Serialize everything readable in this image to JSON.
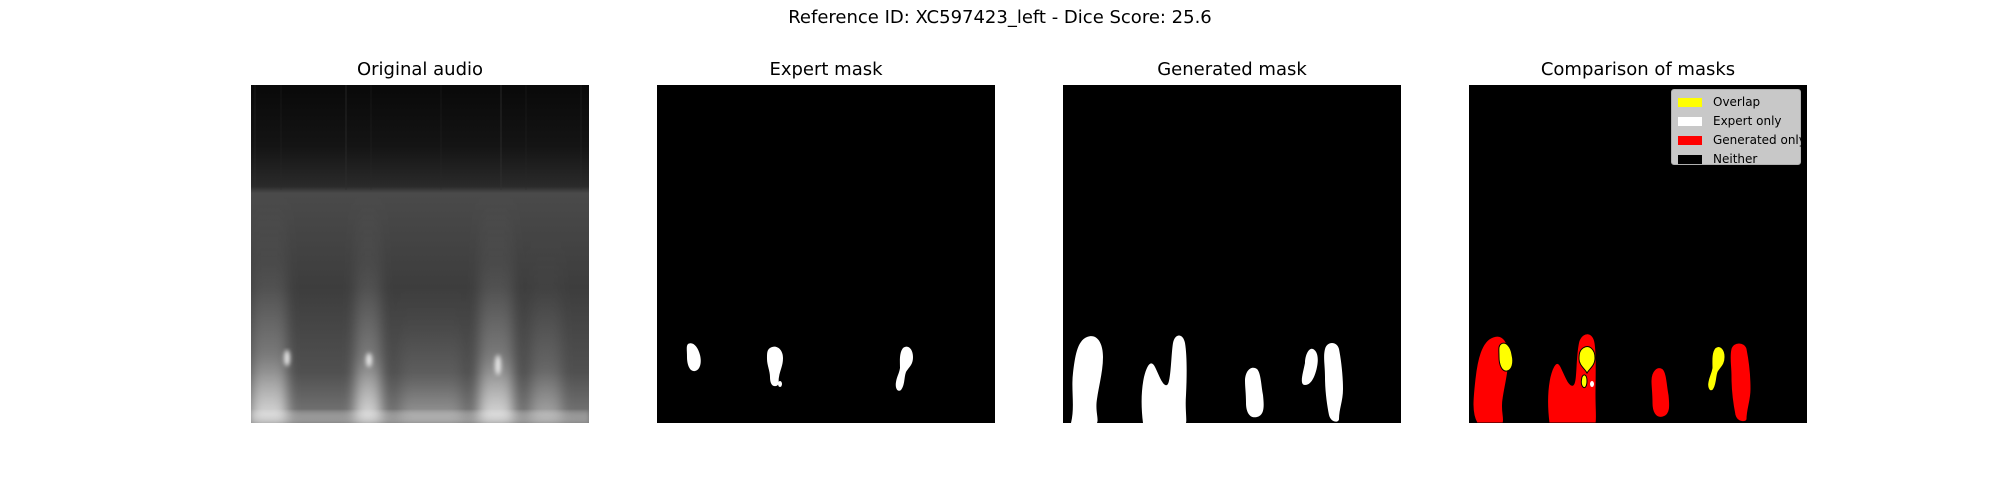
{
  "figure": {
    "suptitle": "Reference ID: XC597423_left - Dice Score: 25.6"
  },
  "panels": [
    {
      "title": "Original audio"
    },
    {
      "title": "Expert mask"
    },
    {
      "title": "Generated mask"
    },
    {
      "title": "Comparison of masks"
    }
  ],
  "colors": {
    "overlap": "#ffff00",
    "expert_only": "#ffffff",
    "generated_only": "#ff0000",
    "neither": "#000000",
    "legend_background": "#cccccc"
  },
  "legend": {
    "placement": "top-right",
    "items": [
      {
        "label": "Overlap",
        "color": "#ffff00"
      },
      {
        "label": "Expert only",
        "color": "#ffffff"
      },
      {
        "label": "Generated only",
        "color": "#ff0000"
      },
      {
        "label": "Neither",
        "color": "#000000"
      }
    ]
  },
  "chart_data": {
    "type": "heatmap",
    "title": "Reference ID: XC597423_left - Dice Score: 25.6",
    "reference_id": "XC597423_left",
    "dice_score": 25.6,
    "axes_visible": false,
    "subplots": [
      {
        "title": "Original audio",
        "type": "heatmap",
        "colormap": "gray",
        "content": "spectrogram"
      },
      {
        "title": "Expert mask",
        "type": "heatmap",
        "colormap": "binary",
        "regions": 3
      },
      {
        "title": "Generated mask",
        "type": "heatmap",
        "colormap": "binary",
        "regions": 6
      },
      {
        "title": "Comparison of masks",
        "type": "heatmap",
        "categories": [
          "Overlap",
          "Expert only",
          "Generated only",
          "Neither"
        ]
      }
    ]
  }
}
